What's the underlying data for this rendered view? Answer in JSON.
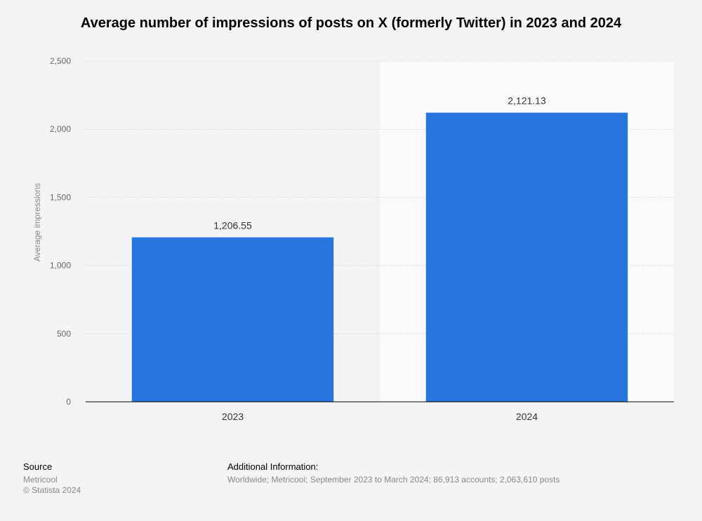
{
  "title": "Average number of impressions of posts on X (formerly Twitter) in 2023 and 2024",
  "chart_data": {
    "type": "bar",
    "categories": [
      "2023",
      "2024"
    ],
    "values": [
      1206.55,
      2121.13
    ],
    "value_labels": [
      "1,206.55",
      "2,121.13"
    ],
    "ylabel": "Average impressions",
    "xlabel": "",
    "ylim": [
      0,
      2500
    ],
    "yticks": [
      0,
      500,
      1000,
      1500,
      2000,
      2500
    ],
    "ytick_labels": [
      "0",
      "500",
      "1,000",
      "1,500",
      "2,000",
      "2,500"
    ],
    "grid": true,
    "bar_color": "#2876dd",
    "legend": "none"
  },
  "footer": {
    "source_heading": "Source",
    "source_name": "Metricool",
    "copyright": "© Statista 2024",
    "additional_heading": "Additional Information:",
    "additional_text": "Worldwide; Metricool; September 2023 to March 2024; 86,913 accounts; 2,063,610 posts"
  }
}
